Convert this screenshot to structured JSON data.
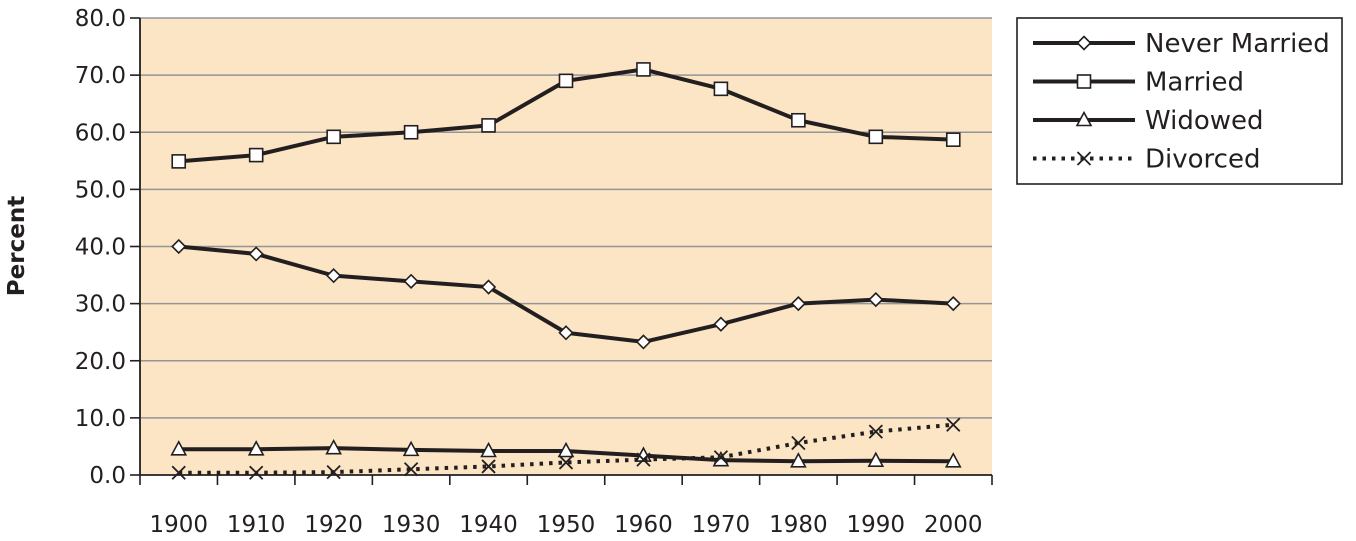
{
  "chart_data": {
    "type": "line",
    "title": "",
    "xlabel": "",
    "ylabel": "Percent",
    "x": [
      1900,
      1910,
      1920,
      1930,
      1940,
      1950,
      1960,
      1970,
      1980,
      1990,
      2000
    ],
    "x_tick_labels": [
      "1900",
      "1910",
      "1920",
      "1930",
      "1940",
      "1950",
      "1960",
      "1970",
      "1980",
      "1990",
      "2000"
    ],
    "y_tick_labels": [
      "0.0",
      "10.0",
      "20.0",
      "30.0",
      "40.0",
      "50.0",
      "60.0",
      "70.0",
      "80.0"
    ],
    "ylim": [
      0,
      80
    ],
    "grid": "horizontal",
    "legend_position": "right",
    "series": [
      {
        "name": "Never Married",
        "marker": "diamond",
        "line": "solid",
        "values": [
          40.0,
          38.7,
          34.9,
          33.9,
          32.9,
          24.9,
          23.3,
          26.4,
          30.0,
          30.7,
          30.0
        ]
      },
      {
        "name": "Married",
        "marker": "square",
        "line": "solid",
        "values": [
          54.9,
          56.0,
          59.2,
          60.0,
          61.2,
          69.0,
          71.0,
          67.6,
          62.1,
          59.2,
          58.7
        ]
      },
      {
        "name": "Widowed",
        "marker": "triangle",
        "line": "solid",
        "values": [
          4.5,
          4.5,
          4.7,
          4.4,
          4.2,
          4.2,
          3.4,
          2.6,
          2.4,
          2.5,
          2.4
        ]
      },
      {
        "name": "Divorced",
        "marker": "x",
        "line": "dotted",
        "values": [
          0.4,
          0.4,
          0.5,
          1.0,
          1.5,
          2.2,
          2.7,
          3.1,
          5.6,
          7.6,
          8.8
        ]
      }
    ],
    "colors": {
      "plot_background": "#fbe5c4",
      "line": "#231f20",
      "grid": "#939598"
    }
  }
}
